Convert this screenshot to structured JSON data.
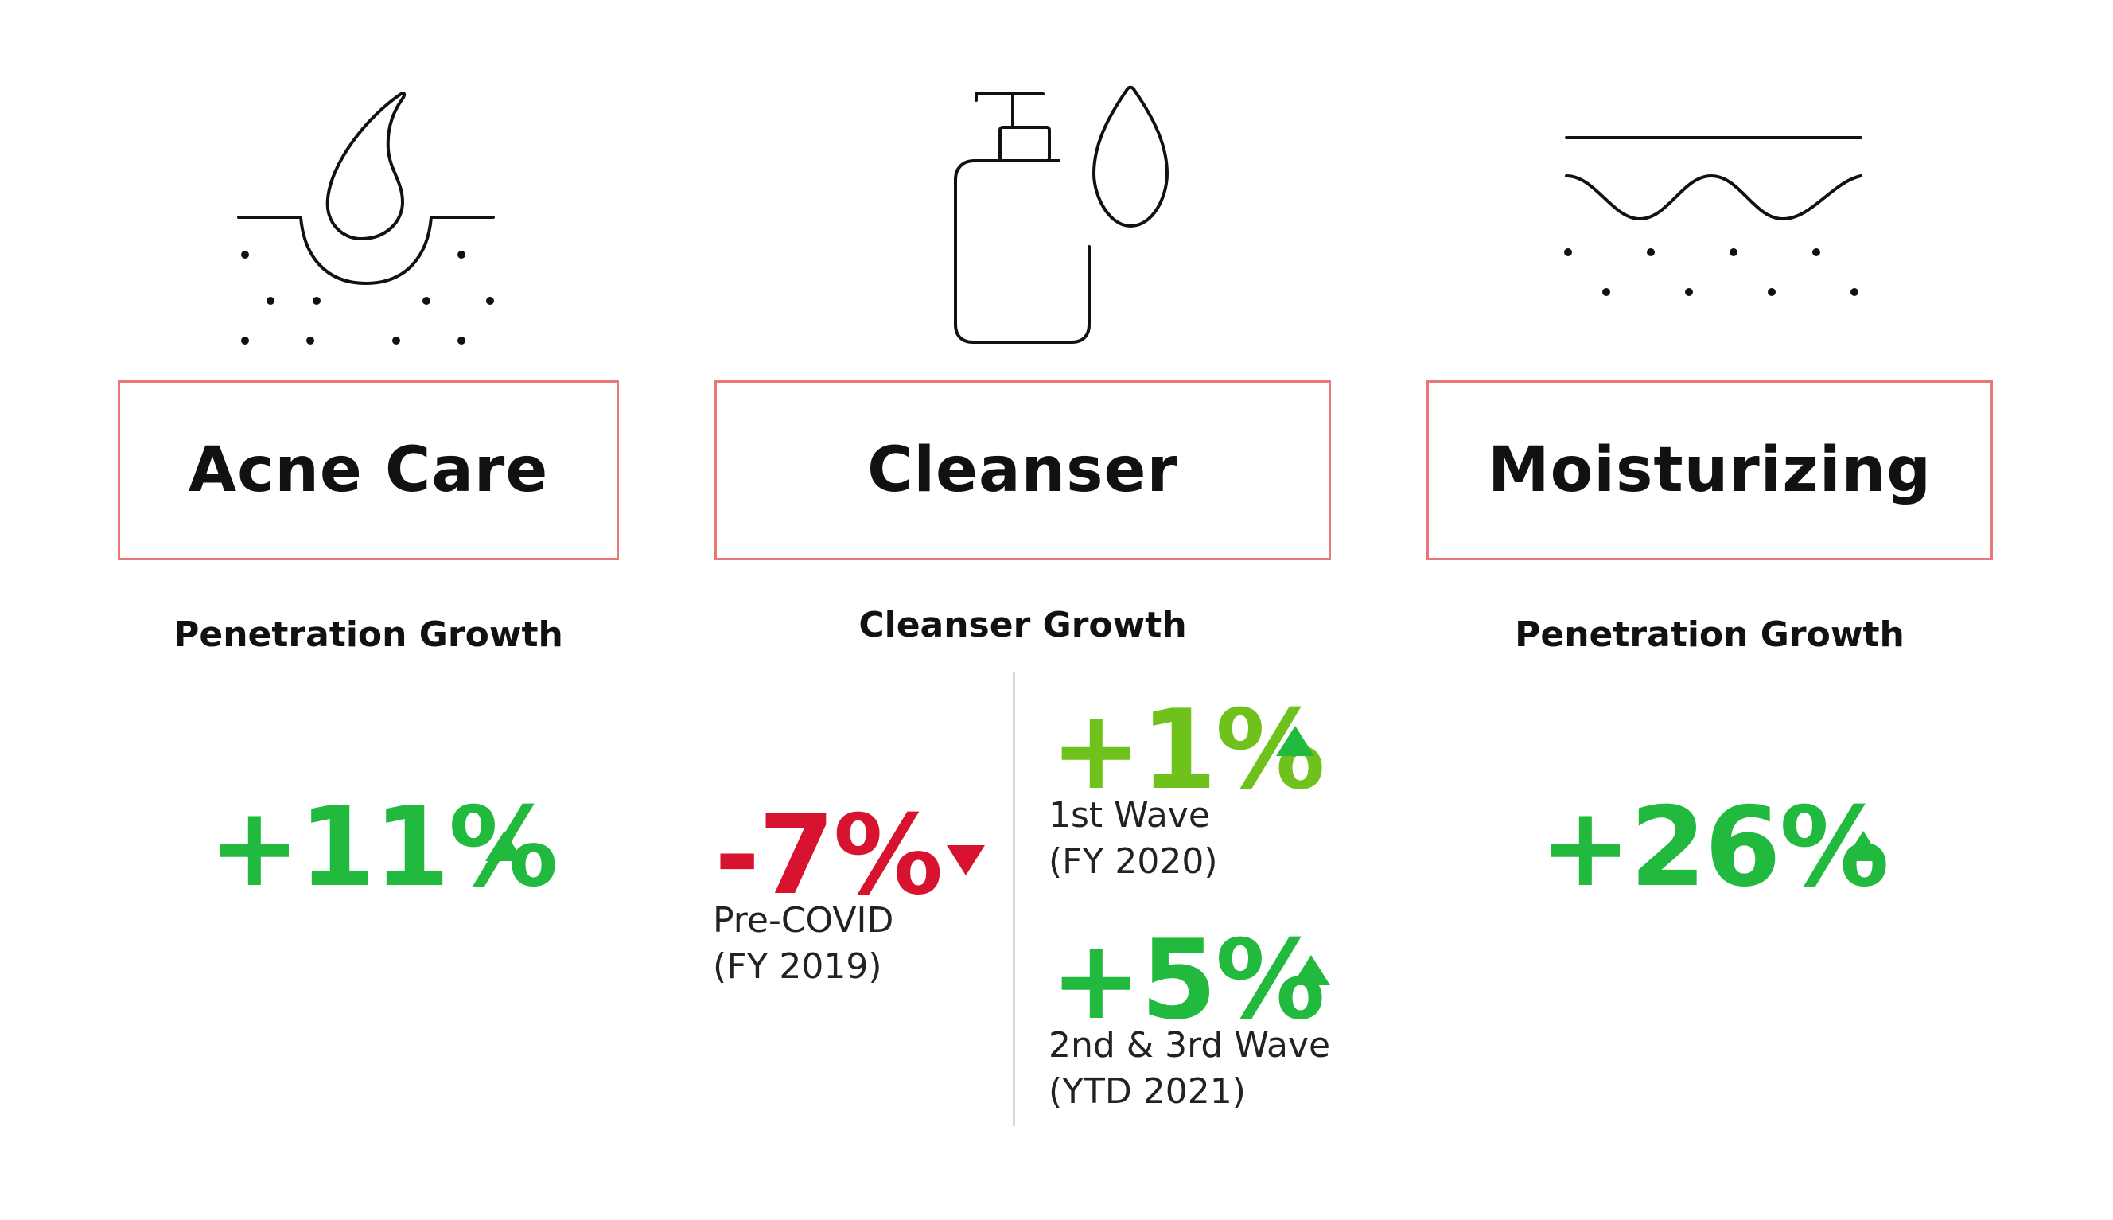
{
  "colors": {
    "box_border": "#e8777a",
    "up_green": "#22b93f",
    "up_light_green": "#6fc21b",
    "down_red": "#d8132f"
  },
  "categories": [
    {
      "icon": "skin-pore-drop-icon",
      "label": "Acne Care",
      "heading": "Penetration Growth",
      "stat": "+11%",
      "trend": "up"
    },
    {
      "icon": "pump-bottle-drop-icon",
      "label": "Cleanser",
      "heading": "Cleanser Growth",
      "stats": [
        {
          "value": "-7%",
          "trend": "down",
          "period": "Pre-COVID",
          "detail": "(FY 2019)"
        },
        {
          "value": "+1%",
          "trend": "up",
          "period": "1st Wave",
          "detail": "(FY 2020)"
        },
        {
          "value": "+5%",
          "trend": "up",
          "period": "2nd & 3rd Wave",
          "detail": "(YTD 2021)"
        }
      ]
    },
    {
      "icon": "skin-wave-layer-icon",
      "label": "Moisturizing",
      "heading": "Penetration Growth",
      "stat": "+26%",
      "trend": "up"
    }
  ]
}
